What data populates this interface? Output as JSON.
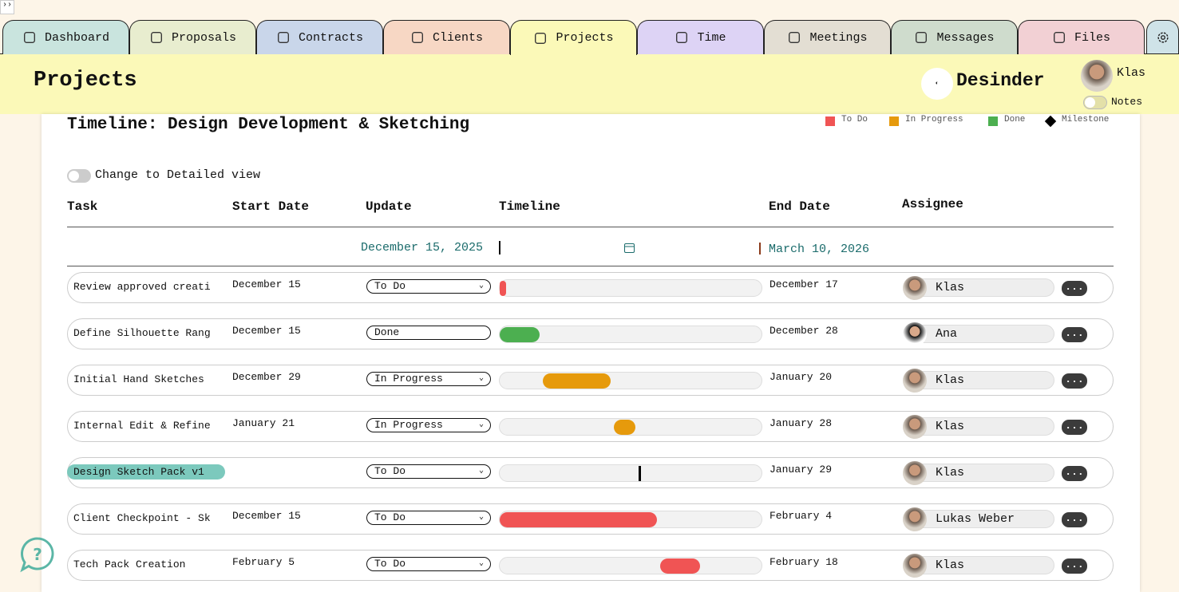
{
  "tabs": [
    "Dashboard",
    "Proposals",
    "Contracts",
    "Clients",
    "Projects",
    "Time",
    "Meetings",
    "Messages",
    "Files"
  ],
  "header": {
    "title": "Projects",
    "brand": "Desinder",
    "user": "Klas",
    "notes": "Notes"
  },
  "timeline": {
    "title": "Timeline: Design Development & Sketching",
    "legend": [
      {
        "label": "To Do",
        "color": "#f05454"
      },
      {
        "label": "In Progress",
        "color": "#e69a0c"
      },
      {
        "label": "Done",
        "color": "#4caf50"
      },
      {
        "label": "Milestone",
        "color": "#000000"
      }
    ],
    "toggle": "Change to Detailed view",
    "columns": [
      "Task",
      "Start Date",
      "Update",
      "Timeline",
      "End Date",
      "Assignee"
    ],
    "range_start": "December 15, 2025",
    "range_end": "March 10, 2026",
    "more": "...",
    "rows": [
      {
        "task": "Review approved creati",
        "start": "December 15",
        "status": "To Do",
        "end": "December 17",
        "assignee": "Klas"
      },
      {
        "task": "Define Silhouette Rang",
        "start": "December 15",
        "status": "Done",
        "end": "December 28",
        "assignee": "Ana"
      },
      {
        "task": "Initial Hand Sketches",
        "start": "December 29",
        "status": "In Progress",
        "end": "January 20",
        "assignee": "Klas"
      },
      {
        "task": "Internal Edit & Refine",
        "start": "January 21",
        "status": "In Progress",
        "end": "January 28",
        "assignee": "Klas"
      },
      {
        "task": "Design Sketch Pack v1",
        "start": null,
        "status": "To Do",
        "end": "January 29",
        "assignee": "Klas"
      },
      {
        "task": "Client Checkpoint - Sk",
        "start": "December 15",
        "status": "To Do",
        "end": "February 4",
        "assignee": "Lukas Weber"
      },
      {
        "task": "Tech Pack Creation",
        "start": "February 5",
        "status": "To Do",
        "end": "February 18",
        "assignee": "Klas"
      }
    ]
  }
}
